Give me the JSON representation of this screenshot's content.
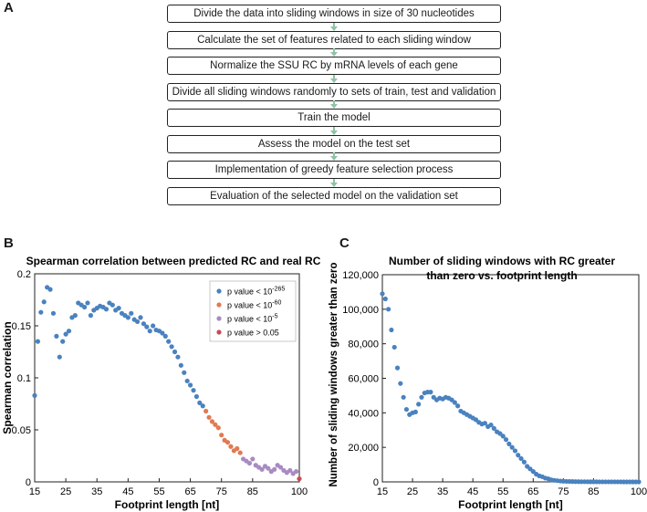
{
  "panel_labels": {
    "a": "A",
    "b": "B",
    "c": "C"
  },
  "flowchart": {
    "steps": [
      "Divide the data into sliding windows in size of 30 nucleotides",
      "Calculate the set of features related to each sliding window",
      "Normalize the SSU RC by mRNA levels of each gene",
      "Divide all sliding windows randomly to sets of train, test and validation",
      "Train the model",
      "Assess the model on the test set",
      "Implementation of greedy feature selection process",
      "Evaluation of the selected model on the validation set"
    ],
    "arrow_color": "#8fc3a6"
  },
  "chart_data": [
    {
      "type": "scatter",
      "title": "Spearman correlation between predicted RC and real RC",
      "xlabel": "Footprint length [nt]",
      "ylabel": "Spearman correlation",
      "xlim": [
        15,
        100
      ],
      "ylim": [
        0,
        0.2
      ],
      "xticks": [
        15,
        25,
        35,
        45,
        55,
        65,
        75,
        85,
        100
      ],
      "yticks": [
        0,
        0.05,
        0.1,
        0.15,
        0.2
      ],
      "ytick_labels": [
        "0",
        "0.05",
        "0.1",
        "0.15",
        "0.2"
      ],
      "legend": {
        "placement": "top-right",
        "entries": [
          {
            "prefix": "p value < 10",
            "sup": "-265",
            "color": "#4a82bf"
          },
          {
            "prefix": "p value < 10",
            "sup": "-60",
            "color": "#e07a52"
          },
          {
            "prefix": "p value < 10",
            "sup": "-5",
            "color": "#a88bc2"
          },
          {
            "prefix": "p value > 0.05",
            "sup": "",
            "color": "#c94a55"
          }
        ]
      },
      "x": [
        15,
        16,
        17,
        18,
        19,
        20,
        21,
        22,
        23,
        24,
        25,
        26,
        27,
        28,
        29,
        30,
        31,
        32,
        33,
        34,
        35,
        36,
        37,
        38,
        39,
        40,
        41,
        42,
        43,
        44,
        45,
        46,
        47,
        48,
        49,
        50,
        51,
        52,
        53,
        54,
        55,
        56,
        57,
        58,
        59,
        60,
        61,
        62,
        63,
        64,
        65,
        66,
        67,
        68,
        69,
        70,
        71,
        72,
        73,
        74,
        75,
        76,
        77,
        78,
        79,
        80,
        81,
        82,
        83,
        84,
        85,
        86,
        87,
        88,
        89,
        90,
        91,
        92,
        93,
        94,
        95,
        96,
        97,
        98,
        99,
        100
      ],
      "y": [
        0.083,
        0.135,
        0.163,
        0.173,
        0.187,
        0.185,
        0.162,
        0.14,
        0.12,
        0.135,
        0.142,
        0.145,
        0.158,
        0.16,
        0.172,
        0.17,
        0.168,
        0.172,
        0.16,
        0.165,
        0.167,
        0.169,
        0.168,
        0.166,
        0.172,
        0.17,
        0.165,
        0.167,
        0.162,
        0.16,
        0.158,
        0.162,
        0.156,
        0.154,
        0.158,
        0.152,
        0.149,
        0.145,
        0.15,
        0.146,
        0.145,
        0.143,
        0.14,
        0.135,
        0.13,
        0.125,
        0.12,
        0.112,
        0.105,
        0.097,
        0.093,
        0.088,
        0.082,
        0.076,
        0.073,
        0.068,
        0.062,
        0.058,
        0.055,
        0.052,
        0.045,
        0.04,
        0.038,
        0.034,
        0.03,
        0.032,
        0.028,
        0.022,
        0.02,
        0.018,
        0.022,
        0.016,
        0.014,
        0.012,
        0.015,
        0.013,
        0.01,
        0.012,
        0.016,
        0.014,
        0.011,
        0.009,
        0.011,
        0.008,
        0.01,
        0.003
      ],
      "group": [
        0,
        0,
        0,
        0,
        0,
        0,
        0,
        0,
        0,
        0,
        0,
        0,
        0,
        0,
        0,
        0,
        0,
        0,
        0,
        0,
        0,
        0,
        0,
        0,
        0,
        0,
        0,
        0,
        0,
        0,
        0,
        0,
        0,
        0,
        0,
        0,
        0,
        0,
        0,
        0,
        0,
        0,
        0,
        0,
        0,
        0,
        0,
        0,
        0,
        0,
        0,
        0,
        0,
        0,
        0,
        1,
        1,
        1,
        1,
        1,
        1,
        1,
        1,
        1,
        1,
        1,
        1,
        2,
        2,
        2,
        2,
        2,
        2,
        2,
        2,
        2,
        2,
        2,
        2,
        2,
        2,
        2,
        2,
        2,
        2,
        3
      ]
    },
    {
      "type": "scatter",
      "title": "Number of sliding windows with RC greater than zero vs. footprint length",
      "title_lines": [
        "Number of sliding windows with RC greater",
        "than zero vs. footprint length"
      ],
      "xlabel": "Footprint length [nt]",
      "ylabel": "Number of sliding windows greater than zero",
      "xlim": [
        15,
        100
      ],
      "ylim": [
        0,
        120000
      ],
      "xticks": [
        15,
        25,
        35,
        45,
        55,
        65,
        75,
        85,
        100
      ],
      "yticks": [
        0,
        20000,
        40000,
        60000,
        80000,
        100000,
        120000
      ],
      "ytick_labels": [
        "0",
        "20,000",
        "40,000",
        "60,000",
        "80,000",
        "100,000",
        "120,000"
      ],
      "color": "#4a82bf",
      "x": [
        15,
        16,
        17,
        18,
        19,
        20,
        21,
        22,
        23,
        24,
        25,
        26,
        27,
        28,
        29,
        30,
        31,
        32,
        33,
        34,
        35,
        36,
        37,
        38,
        39,
        40,
        41,
        42,
        43,
        44,
        45,
        46,
        47,
        48,
        49,
        50,
        51,
        52,
        53,
        54,
        55,
        56,
        57,
        58,
        59,
        60,
        61,
        62,
        63,
        64,
        65,
        66,
        67,
        68,
        69,
        70,
        71,
        72,
        73,
        74,
        75,
        76,
        77,
        78,
        79,
        80,
        81,
        82,
        83,
        84,
        85,
        86,
        87,
        88,
        89,
        90,
        91,
        92,
        93,
        94,
        95,
        96,
        97,
        98,
        99,
        100
      ],
      "y": [
        109000,
        106000,
        100000,
        88000,
        78000,
        66000,
        57000,
        49000,
        42000,
        39000,
        40000,
        40500,
        45000,
        49000,
        51500,
        52000,
        52000,
        49000,
        47500,
        48500,
        48000,
        49000,
        48500,
        47500,
        46000,
        44000,
        41000,
        40000,
        39000,
        38000,
        37000,
        36000,
        34500,
        33500,
        34000,
        32000,
        33000,
        31000,
        29000,
        28000,
        26500,
        24500,
        22000,
        20000,
        18000,
        15500,
        13500,
        11500,
        9000,
        7500,
        6000,
        4500,
        3500,
        3000,
        2200,
        1800,
        1200,
        900,
        700,
        500,
        400,
        300,
        250,
        200,
        150,
        120,
        100,
        90,
        80,
        70,
        60,
        50,
        45,
        40,
        35,
        30,
        25,
        20,
        18,
        15,
        12,
        10,
        8,
        6,
        5,
        4
      ]
    }
  ]
}
